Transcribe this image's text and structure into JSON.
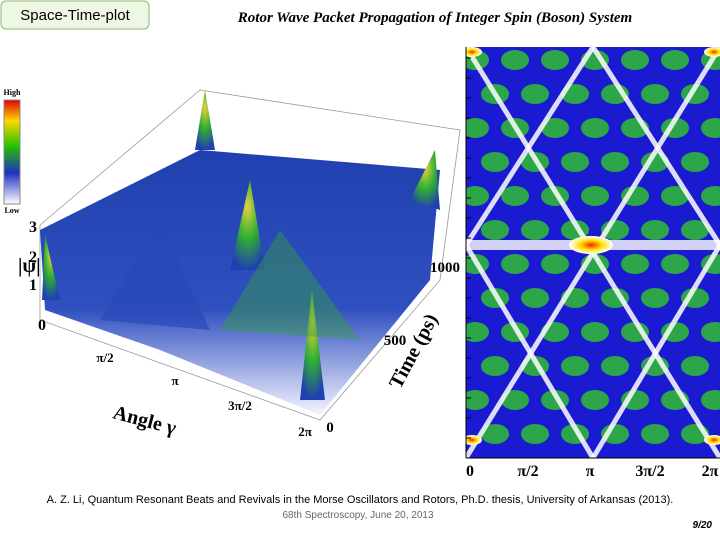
{
  "slide": {
    "badge": "Space-Time-plot",
    "title": "Rotor Wave Packet Propagation of Integer Spin (Boson) System",
    "colorbar": {
      "high": "High",
      "low": "Low"
    },
    "surface_plot": {
      "z_label": "|ψ|",
      "z_ticks": [
        "0",
        "1",
        "2",
        "3"
      ],
      "angle_label": "Angle γ",
      "angle_ticks": [
        "π/2",
        "π",
        "3π/2",
        "2π"
      ],
      "time_label": "Time (ps)",
      "time_ticks": [
        "0",
        "500",
        "1000"
      ]
    },
    "density_plot": {
      "x_ticks": [
        "0",
        "π/2",
        "π",
        "3π/2",
        "2π"
      ]
    },
    "citation": "A. Z. Li, Quantum Resonant Beats and Revivals in the Morse Oscillators and Rotors, Ph.D. thesis, University of Arkansas (2013).",
    "footer": "68th Spectroscopy, June 20, 2013",
    "page": "9/20"
  }
}
